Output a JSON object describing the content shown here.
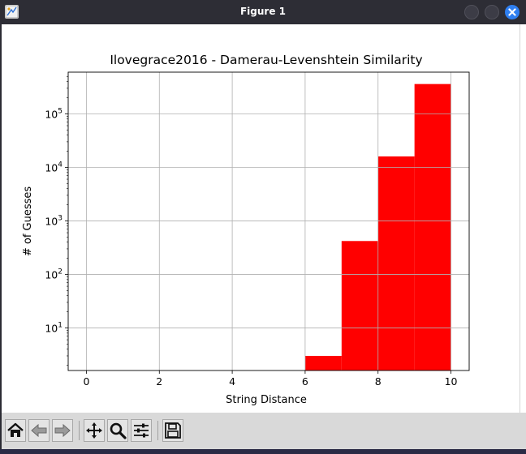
{
  "window": {
    "title": "Figure 1"
  },
  "colors": {
    "bar": "#ff0000",
    "grid": "#b0b0b0",
    "close_button": "#2f7ff0"
  },
  "chart_data": {
    "type": "bar",
    "title": "Ilovegrace2016 - Damerau-Levenshtein Similarity",
    "xlabel": "String Distance",
    "ylabel": "# of Guesses",
    "yscale": "log",
    "xlim": [
      -0.5,
      10.5
    ],
    "ylim": [
      1.6,
      600000
    ],
    "grid": true,
    "x_ticks": [
      0,
      2,
      4,
      6,
      8,
      10
    ],
    "x_tick_labels": [
      "0",
      "2",
      "4",
      "6",
      "8",
      "10"
    ],
    "y_ticks": [
      10,
      100,
      1000,
      10000,
      100000
    ],
    "y_tick_labels": [
      {
        "base": "10",
        "exp": "1"
      },
      {
        "base": "10",
        "exp": "2"
      },
      {
        "base": "10",
        "exp": "3"
      },
      {
        "base": "10",
        "exp": "4"
      },
      {
        "base": "10",
        "exp": "5"
      }
    ],
    "bars": [
      {
        "x0": 6,
        "x1": 7,
        "value": 3
      },
      {
        "x0": 7,
        "x1": 8,
        "value": 420
      },
      {
        "x0": 8,
        "x1": 9,
        "value": 16000
      },
      {
        "x0": 9,
        "x1": 10,
        "value": 360000
      }
    ]
  },
  "toolbar": {
    "buttons": [
      {
        "icon": "home-icon",
        "name": "home-button"
      },
      {
        "icon": "back-arrow-icon",
        "name": "back-button"
      },
      {
        "icon": "forward-arrow-icon",
        "name": "forward-button"
      },
      {
        "icon": "pan-icon",
        "name": "pan-button"
      },
      {
        "icon": "zoom-icon",
        "name": "zoom-button"
      },
      {
        "icon": "configure-subplots-icon",
        "name": "subplots-button"
      },
      {
        "icon": "save-icon",
        "name": "save-button"
      }
    ]
  }
}
